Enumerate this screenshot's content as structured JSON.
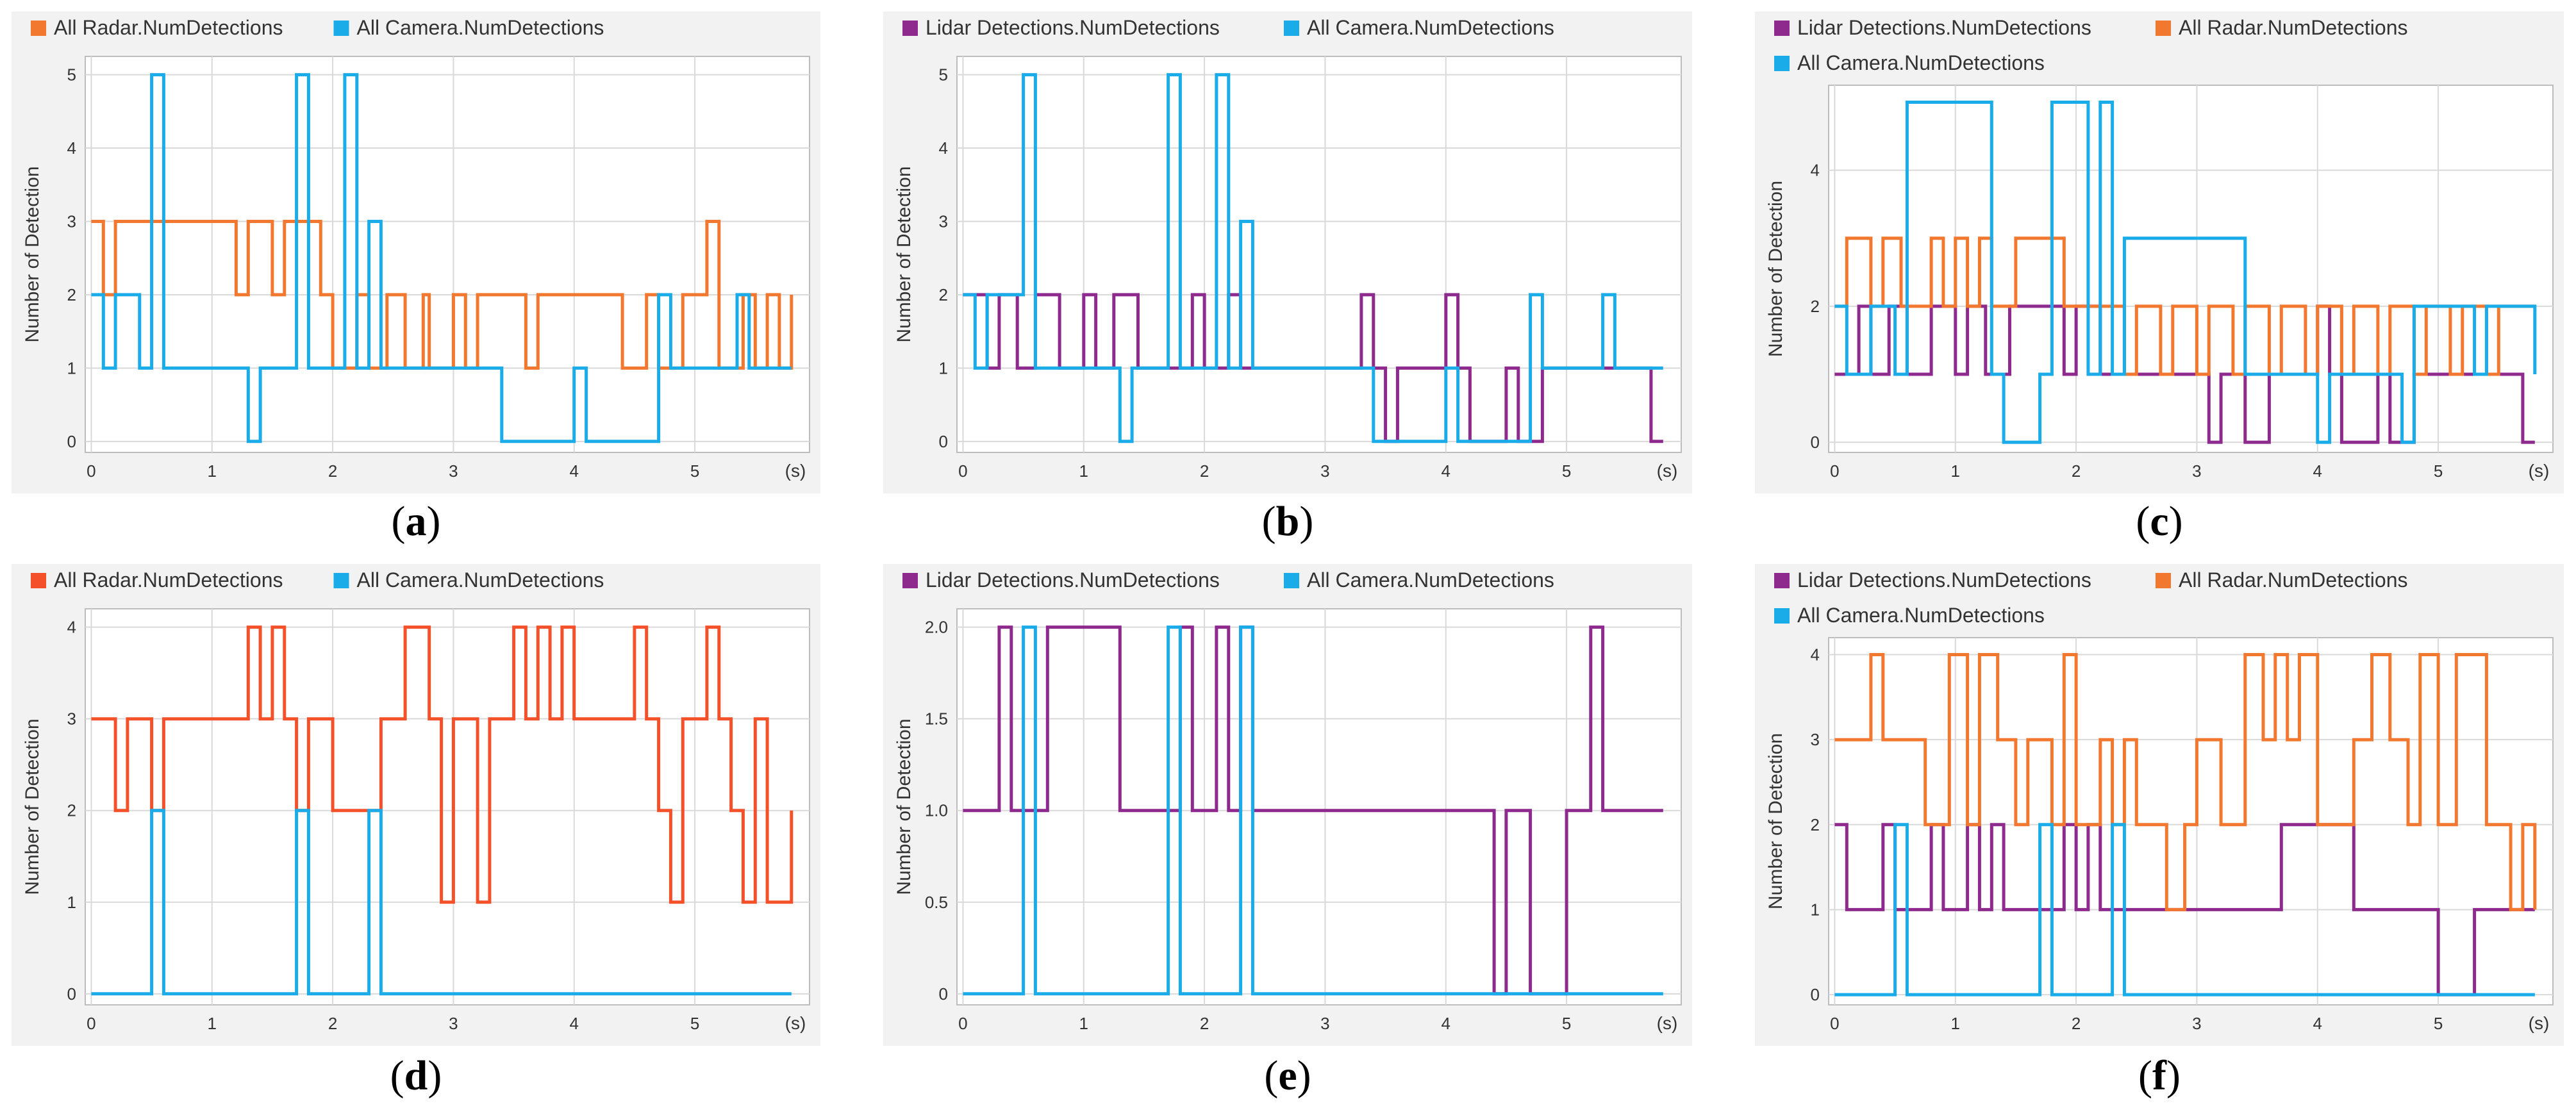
{
  "chart_data": [
    {
      "id": "a",
      "type": "line",
      "caption": "a",
      "ylabel": "Number of Detection",
      "x_unit": "(s)",
      "xlim": [
        -0.05,
        5.95
      ],
      "ylim": [
        -0.15,
        5.25
      ],
      "x_ticks": [
        0,
        1,
        2,
        3,
        4,
        5
      ],
      "y_ticks": [
        0,
        1,
        2,
        3,
        4,
        5
      ],
      "y_tick_labels": [
        "0",
        "1",
        "2",
        "3",
        "4",
        "5"
      ],
      "grid": true,
      "legend_position": "top-left",
      "series": [
        {
          "name": "All Radar.NumDetections",
          "color": "#F2772F",
          "x": [
            0,
            0.1,
            0.2,
            1.2,
            1.3,
            1.5,
            1.6,
            1.9,
            2,
            2.2,
            2.3,
            2.45,
            2.6,
            2.75,
            2.8,
            3,
            3.1,
            3.2,
            3.6,
            3.7,
            3.8,
            4.4,
            4.6,
            4.7,
            4.9,
            5.1,
            5.2,
            5.4,
            5.5,
            5.6,
            5.7,
            5.8
          ],
          "y": [
            3,
            2,
            3,
            2,
            3,
            2,
            3,
            2,
            1,
            2,
            1,
            2,
            1,
            2,
            1,
            2,
            1,
            2,
            1,
            2,
            2,
            1,
            2,
            1,
            2,
            3,
            1,
            2,
            1,
            2,
            1,
            2
          ]
        },
        {
          "name": "All Camera.NumDetections",
          "color": "#1AACE8",
          "x": [
            0,
            0.1,
            0.2,
            0.4,
            0.5,
            0.6,
            1.3,
            1.4,
            1.7,
            1.8,
            2.1,
            2.2,
            2.3,
            2.4,
            3.4,
            4.0,
            4.1,
            4.7,
            4.8,
            5.35,
            5.45,
            5.8
          ],
          "y": [
            2,
            1,
            2,
            1,
            5,
            1,
            0,
            1,
            5,
            1,
            5,
            1,
            3,
            1,
            0,
            1,
            0,
            2,
            1,
            2,
            1,
            1
          ]
        }
      ]
    },
    {
      "id": "b",
      "type": "line",
      "caption": "b",
      "ylabel": "Number of Detection",
      "x_unit": "(s)",
      "xlim": [
        -0.05,
        5.95
      ],
      "ylim": [
        -0.15,
        5.25
      ],
      "x_ticks": [
        0,
        1,
        2,
        3,
        4,
        5
      ],
      "y_ticks": [
        0,
        1,
        2,
        3,
        4,
        5
      ],
      "y_tick_labels": [
        "0",
        "1",
        "2",
        "3",
        "4",
        "5"
      ],
      "grid": true,
      "legend_position": "top-left",
      "series": [
        {
          "name": "Lidar Detections.NumDetections",
          "color": "#8E2A8E",
          "x": [
            0,
            0.2,
            0.3,
            0.45,
            0.6,
            0.8,
            1.0,
            1.1,
            1.25,
            1.45,
            1.9,
            2.0,
            2.2,
            2.3,
            3.3,
            3.4,
            3.5,
            3.6,
            4.0,
            4.1,
            4.2,
            4.5,
            4.6,
            4.8,
            5.0,
            5.7,
            5.8
          ],
          "y": [
            2,
            1,
            2,
            1,
            2,
            1,
            2,
            1,
            2,
            1,
            2,
            1,
            2,
            1,
            2,
            1,
            0,
            1,
            2,
            1,
            0,
            1,
            0,
            1,
            1,
            0,
            0
          ]
        },
        {
          "name": "All Camera.NumDetections",
          "color": "#1AACE8",
          "x": [
            0,
            0.1,
            0.2,
            0.5,
            0.6,
            1.3,
            1.4,
            1.7,
            1.8,
            2.1,
            2.2,
            2.3,
            2.4,
            3.4,
            4.0,
            4.1,
            4.7,
            4.8,
            5.3,
            5.4,
            5.8
          ],
          "y": [
            2,
            1,
            2,
            5,
            1,
            0,
            1,
            5,
            1,
            5,
            1,
            3,
            1,
            0,
            1,
            0,
            2,
            1,
            2,
            1,
            1
          ]
        }
      ]
    },
    {
      "id": "c",
      "type": "line",
      "caption": "c",
      "ylabel": "Number of Detection",
      "x_unit": "(s)",
      "xlim": [
        -0.05,
        5.95
      ],
      "ylim": [
        -0.15,
        5.25
      ],
      "x_ticks": [
        0,
        1,
        2,
        3,
        4,
        5
      ],
      "y_ticks": [
        0,
        2,
        4
      ],
      "y_tick_labels": [
        "0",
        "2",
        "4"
      ],
      "grid": true,
      "legend_position": "top-left",
      "series": [
        {
          "name": "Lidar Detections.NumDetections",
          "color": "#8E2A8E",
          "x": [
            0,
            0.2,
            0.3,
            0.45,
            0.6,
            0.8,
            1.0,
            1.1,
            1.25,
            1.45,
            1.9,
            2.0,
            2.2,
            2.3,
            3.1,
            3.2,
            3.4,
            3.6,
            4.0,
            4.1,
            4.2,
            4.5,
            4.6,
            4.8,
            5.0,
            5.7,
            5.8
          ],
          "y": [
            1,
            2,
            1,
            2,
            1,
            2,
            1,
            2,
            1,
            2,
            1,
            2,
            1,
            1,
            0,
            1,
            0,
            1,
            2,
            1,
            0,
            1,
            0,
            1,
            1,
            0,
            0
          ]
        },
        {
          "name": "All Radar.NumDetections",
          "color": "#F2772F",
          "x": [
            0,
            0.1,
            0.3,
            0.4,
            0.55,
            0.7,
            0.8,
            0.9,
            1.0,
            1.1,
            1.2,
            1.3,
            1.5,
            1.9,
            2.0,
            2.4,
            2.5,
            2.7,
            2.8,
            3.0,
            3.1,
            3.3,
            3.4,
            3.6,
            3.7,
            3.9,
            4.0,
            4.2,
            4.3,
            4.5,
            4.6,
            4.8,
            4.9,
            5.1,
            5.2,
            5.4,
            5.5,
            5.8
          ],
          "y": [
            2,
            3,
            2,
            3,
            2,
            2,
            3,
            2,
            3,
            2,
            3,
            2,
            3,
            2,
            2,
            1,
            2,
            1,
            2,
            1,
            2,
            1,
            2,
            1,
            2,
            1,
            2,
            1,
            2,
            1,
            2,
            1,
            2,
            1,
            2,
            1,
            2,
            2
          ]
        },
        {
          "name": "All Camera.NumDetections",
          "color": "#1AACE8",
          "x": [
            0,
            0.1,
            0.3,
            0.5,
            0.6,
            1.3,
            1.4,
            1.7,
            1.8,
            2.1,
            2.2,
            2.3,
            2.4,
            3.4,
            4.0,
            4.1,
            4.7,
            4.8,
            5.3,
            5.4,
            5.8
          ],
          "y": [
            2,
            1,
            2,
            1,
            5,
            1,
            0,
            1,
            5,
            1,
            5,
            1,
            3,
            1,
            0,
            1,
            0,
            2,
            1,
            2,
            1
          ]
        }
      ]
    },
    {
      "id": "d",
      "type": "line",
      "caption": "d",
      "ylabel": "Number of Detection",
      "x_unit": "(s)",
      "xlim": [
        -0.05,
        5.95
      ],
      "ylim": [
        -0.12,
        4.2
      ],
      "x_ticks": [
        0,
        1,
        2,
        3,
        4,
        5
      ],
      "y_ticks": [
        0,
        1,
        2,
        3,
        4
      ],
      "y_tick_labels": [
        "0",
        "1",
        "2",
        "3",
        "4"
      ],
      "grid": true,
      "legend_position": "top-left",
      "series": [
        {
          "name": "All Radar.NumDetections",
          "color": "#F4502A",
          "x": [
            0,
            0.2,
            0.3,
            0.5,
            0.6,
            1.2,
            1.3,
            1.4,
            1.5,
            1.6,
            1.7,
            1.8,
            2.0,
            2.3,
            2.4,
            2.6,
            2.8,
            2.9,
            3.0,
            3.2,
            3.3,
            3.5,
            3.6,
            3.7,
            3.8,
            3.9,
            4.0,
            4.4,
            4.5,
            4.6,
            4.7,
            4.8,
            4.9,
            5.1,
            5.2,
            5.3,
            5.4,
            5.5,
            5.6,
            5.8
          ],
          "y": [
            3,
            2,
            3,
            2,
            3,
            3,
            4,
            3,
            4,
            3,
            2,
            3,
            2,
            2,
            3,
            4,
            3,
            1,
            3,
            1,
            3,
            4,
            3,
            4,
            3,
            4,
            3,
            3,
            4,
            3,
            2,
            1,
            3,
            4,
            3,
            2,
            1,
            3,
            1,
            2
          ]
        },
        {
          "name": "All Camera.NumDetections",
          "color": "#1AACE8",
          "x": [
            0,
            0.5,
            0.6,
            1.7,
            1.8,
            2.3,
            2.4,
            5.8
          ],
          "y": [
            0,
            2,
            0,
            2,
            0,
            2,
            0,
            0
          ]
        }
      ]
    },
    {
      "id": "e",
      "type": "line",
      "caption": "e",
      "ylabel": "Number of Detection",
      "x_unit": "(s)",
      "xlim": [
        -0.05,
        5.95
      ],
      "ylim": [
        -0.06,
        2.1
      ],
      "x_ticks": [
        0,
        1,
        2,
        3,
        4,
        5
      ],
      "y_ticks": [
        0,
        0.5,
        1,
        1.5,
        2
      ],
      "y_tick_labels": [
        "0",
        "0.5",
        "1.0",
        "1.5",
        "2.0"
      ],
      "grid": true,
      "legend_position": "top-left",
      "series": [
        {
          "name": "Lidar Detections.NumDetections",
          "color": "#8E2A8E",
          "x": [
            0,
            0.3,
            0.4,
            0.7,
            1.3,
            1.8,
            1.9,
            2.1,
            2.2,
            2.3,
            2.4,
            2.5,
            4.4,
            4.5,
            4.7,
            5.0,
            5.2,
            5.3,
            5.8
          ],
          "y": [
            1,
            2,
            1,
            2,
            1,
            2,
            1,
            2,
            1,
            2,
            1,
            1,
            0,
            1,
            0,
            1,
            2,
            1,
            1
          ]
        },
        {
          "name": "All Camera.NumDetections",
          "color": "#1AACE8",
          "x": [
            0,
            0.5,
            0.6,
            1.7,
            1.8,
            2.3,
            2.4,
            5.8
          ],
          "y": [
            0,
            2,
            0,
            2,
            0,
            2,
            0,
            0
          ]
        }
      ]
    },
    {
      "id": "f",
      "type": "line",
      "caption": "f",
      "ylabel": "Number of Detection",
      "x_unit": "(s)",
      "xlim": [
        -0.05,
        5.95
      ],
      "ylim": [
        -0.12,
        4.2
      ],
      "x_ticks": [
        0,
        1,
        2,
        3,
        4,
        5
      ],
      "y_ticks": [
        0,
        1,
        2,
        3,
        4
      ],
      "y_tick_labels": [
        "0",
        "1",
        "2",
        "3",
        "4"
      ],
      "grid": true,
      "legend_position": "top-left",
      "series": [
        {
          "name": "Lidar Detections.NumDetections",
          "color": "#8E2A8E",
          "x": [
            0,
            0.1,
            0.4,
            0.5,
            0.8,
            0.9,
            1.1,
            1.2,
            1.3,
            1.4,
            1.6,
            1.9,
            2.0,
            2.1,
            2.2,
            2.3,
            2.5,
            3.7,
            4.3,
            5.0,
            5.3,
            5.8
          ],
          "y": [
            2,
            1,
            2,
            1,
            2,
            1,
            2,
            1,
            2,
            1,
            1,
            2,
            1,
            2,
            1,
            1,
            1,
            2,
            1,
            0,
            1,
            1
          ]
        },
        {
          "name": "All Radar.NumDetections",
          "color": "#F2772F",
          "x": [
            0,
            0.3,
            0.4,
            0.75,
            0.95,
            1.1,
            1.2,
            1.35,
            1.5,
            1.6,
            1.8,
            1.9,
            2.0,
            2.2,
            2.3,
            2.4,
            2.5,
            2.75,
            2.9,
            3.0,
            3.2,
            3.4,
            3.55,
            3.65,
            3.75,
            3.85,
            4.0,
            4.3,
            4.45,
            4.6,
            4.75,
            4.85,
            5.0,
            5.15,
            5.4,
            5.6,
            5.7,
            5.8
          ],
          "y": [
            3,
            4,
            3,
            2,
            4,
            2,
            4,
            3,
            2,
            3,
            2,
            4,
            2,
            3,
            2,
            3,
            2,
            1,
            2,
            3,
            2,
            4,
            3,
            4,
            3,
            4,
            2,
            3,
            4,
            3,
            2,
            4,
            2,
            4,
            2,
            1,
            2,
            1
          ]
        },
        {
          "name": "All Camera.NumDetections",
          "color": "#1AACE8",
          "x": [
            0,
            0.5,
            0.6,
            1.7,
            1.8,
            2.3,
            2.4,
            5.8
          ],
          "y": [
            0,
            2,
            0,
            2,
            0,
            2,
            0,
            0
          ]
        }
      ]
    }
  ]
}
